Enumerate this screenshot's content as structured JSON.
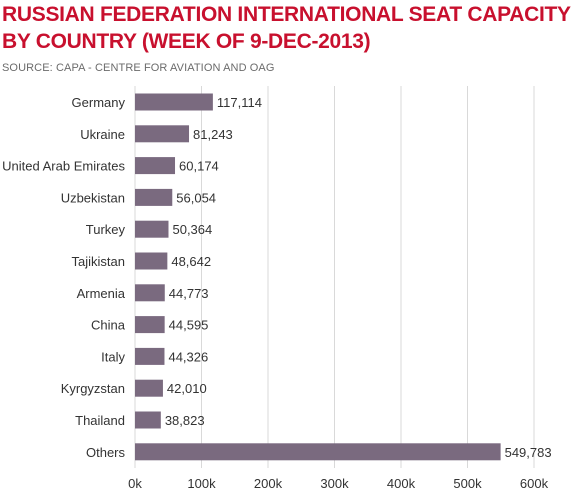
{
  "header": {
    "title": "RUSSIAN FEDERATION INTERNATIONAL SEAT CAPACITY BY COUNTRY (WEEK OF 9-DEC-2013)",
    "source": "SOURCE: CAPA - CENTRE FOR AVIATION AND OAG"
  },
  "colors": {
    "title": "#c8102e",
    "bar": "#7a6a7f",
    "grid": "#d9d9d9"
  },
  "chart_data": {
    "type": "bar",
    "orientation": "horizontal",
    "title": "RUSSIAN FEDERATION INTERNATIONAL SEAT CAPACITY BY COUNTRY (WEEK OF 9-DEC-2013)",
    "xlabel": "",
    "ylabel": "",
    "xlim": [
      0,
      650000
    ],
    "grid": "vertical",
    "categories": [
      "Germany",
      "Ukraine",
      "United Arab Emirates",
      "Uzbekistan",
      "Turkey",
      "Tajikistan",
      "Armenia",
      "China",
      "Italy",
      "Kyrgyzstan",
      "Thailand",
      "Others"
    ],
    "values": [
      117114,
      81243,
      60174,
      56054,
      50364,
      48642,
      44773,
      44595,
      44326,
      42010,
      38823,
      549783
    ],
    "value_labels": [
      "117,114",
      "81,243",
      "60,174",
      "56,054",
      "50,364",
      "48,642",
      "44,773",
      "44,595",
      "44,326",
      "42,010",
      "38,823",
      "549,783"
    ],
    "ticks": [
      0,
      100000,
      200000,
      300000,
      400000,
      500000,
      600000
    ],
    "tick_labels": [
      "0k",
      "100k",
      "200k",
      "300k",
      "400k",
      "500k",
      "600k"
    ]
  }
}
